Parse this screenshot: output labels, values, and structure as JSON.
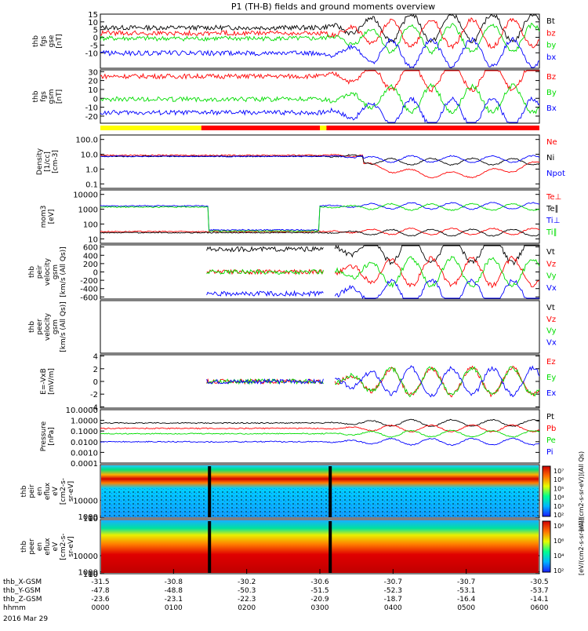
{
  "title": "P1 (TH-B) fields and ground moments overview",
  "colors": {
    "black": "#000000",
    "red": "#ff0000",
    "green": "#00dd00",
    "blue": "#0000ff",
    "yellow": "#ffff00"
  },
  "chart_data": [
    {
      "id": "fgs_gse",
      "type": "line",
      "ylabel": [
        "thb",
        "fgs",
        "gse",
        "[nT]"
      ],
      "ylim": [
        -20,
        15
      ],
      "ticks": [
        15,
        10,
        5,
        0,
        -5,
        -10
      ],
      "series": [
        {
          "name": "Bt",
          "color": "black"
        },
        {
          "name": "bz",
          "color": "red"
        },
        {
          "name": "by",
          "color": "green"
        },
        {
          "name": "bx",
          "color": "blue"
        }
      ]
    },
    {
      "id": "fgs_gsm",
      "type": "line",
      "ylabel": [
        "thb",
        "fgs",
        "gsm",
        "[nT]"
      ],
      "ylim": [
        -28,
        32
      ],
      "ticks": [
        30,
        20,
        10,
        0,
        -10,
        -20
      ],
      "series": [
        {
          "name": "Bz",
          "color": "red"
        },
        {
          "name": "By",
          "color": "green"
        },
        {
          "name": "Bx",
          "color": "blue"
        }
      ]
    },
    {
      "id": "density",
      "type": "line",
      "log": true,
      "ylabel": [
        "Density",
        "[1/cc]",
        "[cm-3]"
      ],
      "ylim": [
        0.05,
        200
      ],
      "ticks": [
        "100.0",
        "10.0",
        "1.0",
        "0.1"
      ],
      "series": [
        {
          "name": "Ne",
          "color": "red"
        },
        {
          "name": "Ni",
          "color": "black"
        },
        {
          "name": "Npot",
          "color": "blue"
        }
      ]
    },
    {
      "id": "temperature",
      "type": "line",
      "log": true,
      "ylabel": [
        "mom3",
        "[eV]"
      ],
      "ylim": [
        5,
        20000
      ],
      "ticks": [
        "10000",
        "1000",
        "100",
        "10"
      ],
      "series": [
        {
          "name": "Te⊥",
          "color": "red"
        },
        {
          "name": "Te∥",
          "color": "black"
        },
        {
          "name": "Ti⊥",
          "color": "blue"
        },
        {
          "name": "Ti∥",
          "color": "green"
        }
      ]
    },
    {
      "id": "peir_vel",
      "type": "line",
      "ylabel": [
        "thb",
        "peir",
        "velocity",
        "gsm",
        "[km/s (All Qs)]"
      ],
      "ylim": [
        -650,
        650
      ],
      "ticks": [
        600,
        400,
        200,
        0,
        -200,
        -400,
        -600
      ],
      "series": [
        {
          "name": "Vt",
          "color": "black"
        },
        {
          "name": "Vz",
          "color": "red"
        },
        {
          "name": "Vy",
          "color": "green"
        },
        {
          "name": "Vx",
          "color": "blue"
        }
      ]
    },
    {
      "id": "peer_vel",
      "type": "line",
      "ylabel": [
        "thb",
        "peer",
        "velocity",
        "gsm",
        "[km/s (All Qs)]"
      ],
      "ylim": [
        0,
        1
      ],
      "ticks": [],
      "series": [
        {
          "name": "Vt",
          "color": "black"
        },
        {
          "name": "Vz",
          "color": "red"
        },
        {
          "name": "Vy",
          "color": "green"
        },
        {
          "name": "Vx",
          "color": "blue"
        }
      ]
    },
    {
      "id": "efield",
      "type": "line",
      "ylabel": [
        "E=-VxB",
        "[mV/m]"
      ],
      "ylim": [
        -4.2,
        4.2
      ],
      "ticks": [
        4,
        2,
        0,
        -2,
        -4
      ],
      "series": [
        {
          "name": "Ez",
          "color": "red"
        },
        {
          "name": "Ey",
          "color": "green"
        },
        {
          "name": "Ex",
          "color": "blue"
        }
      ]
    },
    {
      "id": "pressure",
      "type": "line",
      "log": true,
      "ylabel": [
        "Pressure",
        "[nPa]"
      ],
      "ylim": [
        0.0001,
        10
      ],
      "ticks": [
        "10.0000",
        "1.0000",
        "0.1000",
        "0.0100",
        "0.0010",
        "0.0001"
      ],
      "series": [
        {
          "name": "Pt",
          "color": "black"
        },
        {
          "name": "Pb",
          "color": "red"
        },
        {
          "name": "Pe",
          "color": "green"
        },
        {
          "name": "Pi",
          "color": "blue"
        }
      ]
    },
    {
      "id": "peir_spec",
      "type": "heatmap",
      "ylabel": [
        "thb",
        "peir",
        "en",
        "eflux",
        "eV",
        "[cm2-s-",
        "sr-eV]"
      ],
      "ylim": [
        8,
        30000
      ],
      "ticks": [
        "10000",
        "1000",
        "100",
        "10"
      ],
      "colorbar": {
        "ticks": [
          "10⁷",
          "10⁶",
          "10⁵",
          "10⁴",
          "10³",
          "10²"
        ],
        "label": "[eV/(cm2-s-sr-eV)](All Qs)"
      }
    },
    {
      "id": "peer_spec",
      "type": "heatmap",
      "ylabel": [
        "thb",
        "peer",
        "en",
        "eflux",
        "eV",
        "[cm2-s-",
        "sr-eV]"
      ],
      "ylim": [
        8,
        30000
      ],
      "ticks": [
        "10000",
        "1000",
        "100",
        "10"
      ],
      "colorbar": {
        "ticks": [
          "10⁸",
          "10⁶",
          "10⁴",
          "10²"
        ],
        "label": "[eV/(cm2-s-sr-eV)]"
      }
    }
  ],
  "bar_status": [
    {
      "from": 0,
      "to": 0.23,
      "color": "yellow"
    },
    {
      "from": 0.23,
      "to": 0.5,
      "color": "red"
    },
    {
      "from": 0.5,
      "to": 0.515,
      "color": "yellow"
    },
    {
      "from": 0.515,
      "to": 1,
      "color": "red"
    }
  ],
  "xaxis": {
    "rows": [
      {
        "label": "thb_X-GSM",
        "values": [
          "-31.5",
          "-30.8",
          "-30.2",
          "-30.6",
          "-30.7",
          "-30.7",
          "-30.5"
        ]
      },
      {
        "label": "thb_Y-GSM",
        "values": [
          "-47.8",
          "-48.8",
          "-50.3",
          "-51.5",
          "-52.3",
          "-53.1",
          "-53.7"
        ]
      },
      {
        "label": "thb_Z-GSM",
        "values": [
          "-23.6",
          "-23.1",
          "-22.3",
          "-20.9",
          "-18.7",
          "-16.4",
          "-14.1"
        ]
      },
      {
        "label": "hhmm",
        "values": [
          "0000",
          "0100",
          "0200",
          "0300",
          "0400",
          "0500",
          "0600"
        ]
      }
    ],
    "date": "2016 Mar 29"
  }
}
